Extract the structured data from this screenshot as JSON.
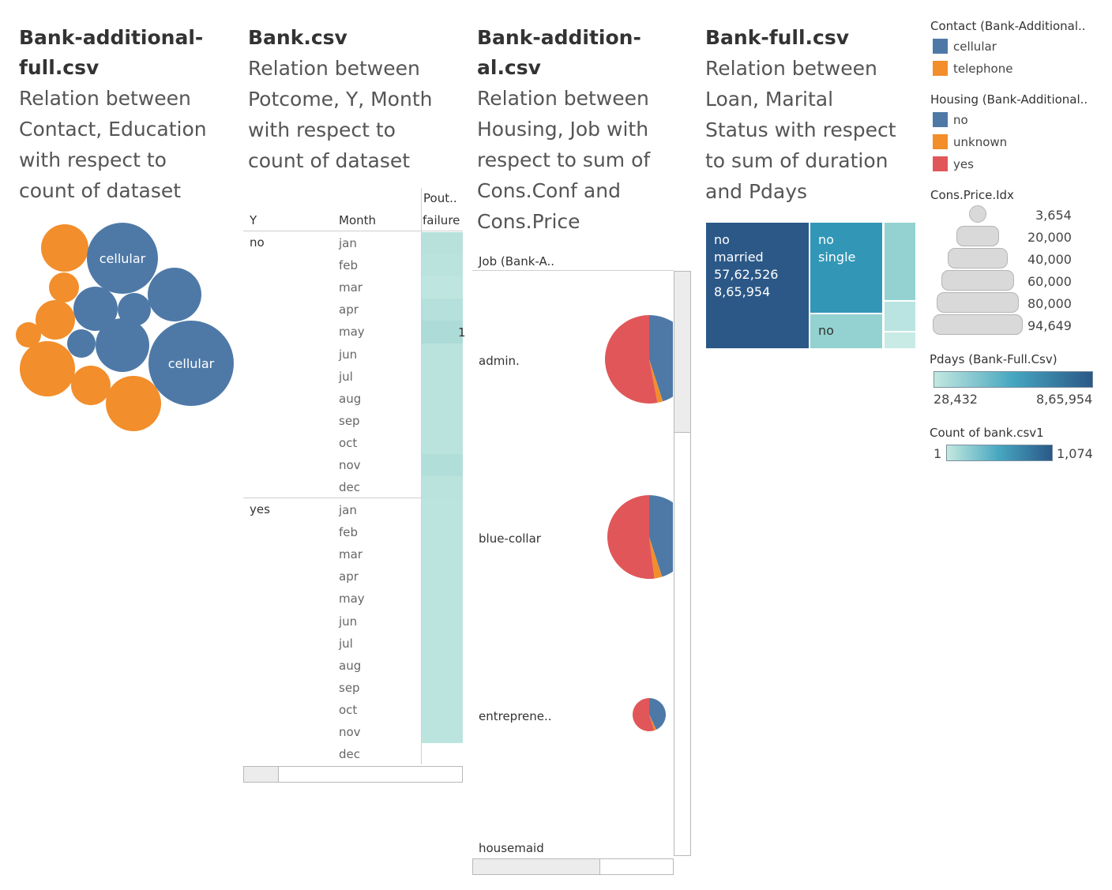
{
  "sheets": {
    "s1": {
      "title": [
        "Bank-additional-",
        "full.csv"
      ],
      "subtitle": [
        "Relation between",
        "Contact, Education",
        "with respect to",
        "count of dataset"
      ]
    },
    "s2": {
      "title": [
        "Bank.csv"
      ],
      "subtitle": [
        "Relation between",
        "Potcome, Y, Month",
        "with respect to",
        "count of dataset"
      ]
    },
    "s3": {
      "title": [
        "Bank-addition-",
        "al.csv"
      ],
      "subtitle": [
        "Relation between",
        "Housing, Job with",
        "respect to sum of",
        "Cons.Conf and",
        "Cons.Price"
      ]
    },
    "s4": {
      "title": [
        "Bank-full.csv"
      ],
      "subtitle": [
        "Relation between",
        "Loan, Marital",
        "Status with respect",
        "to sum of duration",
        "and Pdays"
      ]
    }
  },
  "bubble_labels": [
    "cellular",
    "cellular"
  ],
  "crosstab": {
    "header_top": "Pout..",
    "header_y": "Y",
    "header_month": "Month",
    "header_failure": "failure",
    "y_no": "no",
    "y_yes": "yes",
    "months": [
      "jan",
      "feb",
      "mar",
      "apr",
      "may",
      "jun",
      "jul",
      "aug",
      "sep",
      "oct",
      "nov",
      "dec"
    ],
    "overflow_mark": "1"
  },
  "pies": {
    "header": "Job (Bank-A..",
    "rows": [
      "admin.",
      "blue-collar",
      "entreprene..",
      "housemaid"
    ]
  },
  "treemap": {
    "main_lines": [
      "no",
      "married",
      "57,62,526",
      "8,65,954"
    ],
    "single_lines": [
      "no",
      "single"
    ],
    "sub_label": "no"
  },
  "legends": {
    "contact": {
      "title": "Contact (Bank-Additional..",
      "items": [
        {
          "label": "cellular",
          "color": "#4e79a7"
        },
        {
          "label": "telephone",
          "color": "#f28e2b"
        }
      ]
    },
    "housing": {
      "title": "Housing (Bank-Additional..",
      "items": [
        {
          "label": "no",
          "color": "#4e79a7"
        },
        {
          "label": "unknown",
          "color": "#f28e2b"
        },
        {
          "label": "yes",
          "color": "#e15759"
        }
      ]
    },
    "cons_price": {
      "title": "Cons.Price.Idx",
      "values": [
        "3,654",
        "20,000",
        "40,000",
        "60,000",
        "80,000",
        "94,649"
      ]
    },
    "pdays": {
      "title": "Pdays (Bank-Full.Csv)",
      "min": "28,432",
      "max": "8,65,954"
    },
    "count": {
      "title": "Count of bank.csv1",
      "min": "1",
      "max": "1,074"
    }
  },
  "chart_data": [
    {
      "type": "pie",
      "series": [
        {
          "name": "admin.",
          "values": [
            {
              "label": "no",
              "value": 45
            },
            {
              "label": "unknown",
              "value": 2
            },
            {
              "label": "yes",
              "value": 53
            }
          ]
        },
        {
          "name": "blue-collar",
          "values": [
            {
              "label": "no",
              "value": 45
            },
            {
              "label": "unknown",
              "value": 3
            },
            {
              "label": "yes",
              "value": 52
            }
          ]
        },
        {
          "name": "entreprene..",
          "values": [
            {
              "label": "no",
              "value": 43
            },
            {
              "label": "unknown",
              "value": 2
            },
            {
              "label": "yes",
              "value": 55
            }
          ]
        }
      ]
    },
    {
      "type": "heatmap",
      "rows": [
        "no",
        "yes"
      ],
      "columns": [
        "jan",
        "feb",
        "mar",
        "apr",
        "may",
        "jun",
        "jul",
        "aug",
        "sep",
        "oct",
        "nov",
        "dec"
      ],
      "series": [
        {
          "name": "no",
          "values": [
            0.35,
            0.3,
            0.25,
            0.4,
            0.55,
            0.3,
            0.3,
            0.3,
            0.3,
            0.3,
            0.45,
            0.3
          ]
        },
        {
          "name": "yes",
          "values": [
            0.28,
            0.28,
            0.28,
            0.28,
            0.28,
            0.28,
            0.28,
            0.28,
            0.28,
            0.28,
            0.28,
            0.0
          ]
        }
      ]
    }
  ]
}
